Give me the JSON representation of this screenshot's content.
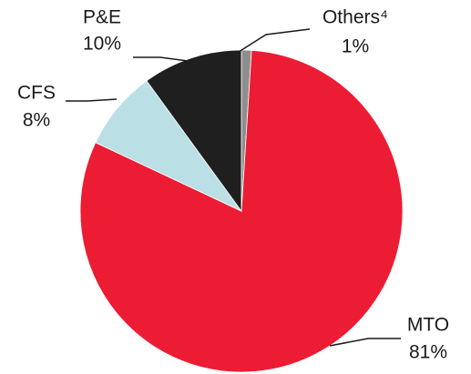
{
  "chart_data": {
    "type": "pie",
    "categories": [
      "Others⁴",
      "MTO",
      "CFS",
      "P&E"
    ],
    "values": [
      1,
      81,
      8,
      10
    ],
    "value_labels": [
      "1%",
      "81%",
      "8%",
      "10%"
    ],
    "colors": [
      "#8e8e8e",
      "#ec1c34",
      "#badfe4",
      "#1f1f1f"
    ]
  }
}
